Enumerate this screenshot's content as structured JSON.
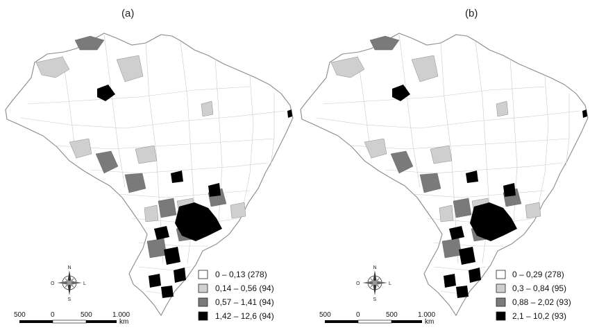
{
  "panels": [
    {
      "label": "(a)",
      "legend": [
        {
          "text": "0 – 0,13 (278)",
          "color": "#ffffff"
        },
        {
          "text": "0,14 – 0,56 (94)",
          "color": "#cfcfcf"
        },
        {
          "text": "0,57 – 1,41 (94)",
          "color": "#7a7a7a"
        },
        {
          "text": "1,42 – 12,6 (94)",
          "color": "#000000"
        }
      ],
      "scale": {
        "ticks": [
          "500",
          "0",
          "500",
          "1.000"
        ],
        "unit": "km"
      },
      "compass": {
        "n": "N",
        "s": "S",
        "e": "L",
        "w": "O"
      }
    },
    {
      "label": "(b)",
      "legend": [
        {
          "text": "0 – 0,29 (278)",
          "color": "#ffffff"
        },
        {
          "text": "0,3 – 0,84 (95)",
          "color": "#cfcfcf"
        },
        {
          "text": "0,88 – 2,02 (93)",
          "color": "#7a7a7a"
        },
        {
          "text": "2,1 – 10,2 (93)",
          "color": "#000000"
        }
      ],
      "scale": {
        "ticks": [
          "500",
          "0",
          "500",
          "1.000"
        ],
        "unit": "km"
      },
      "compass": {
        "n": "N",
        "s": "S",
        "e": "L",
        "w": "O"
      }
    }
  ]
}
